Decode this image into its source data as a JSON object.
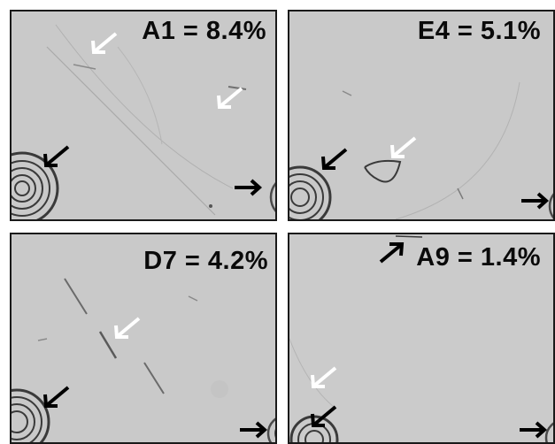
{
  "panels": [
    {
      "label": "A1 = 8.4%"
    },
    {
      "label": "E4 = 5.1%"
    },
    {
      "label": "D7 = 4.2%"
    },
    {
      "label": "A9 = 1.4%"
    }
  ],
  "colors": {
    "background": "#c8c8c8",
    "border": "#1a1a1a",
    "black_arrow": "#000000",
    "white_arrow": "#ffffff"
  },
  "icons": [
    "black-arrow-icon",
    "white-arrow-icon"
  ]
}
